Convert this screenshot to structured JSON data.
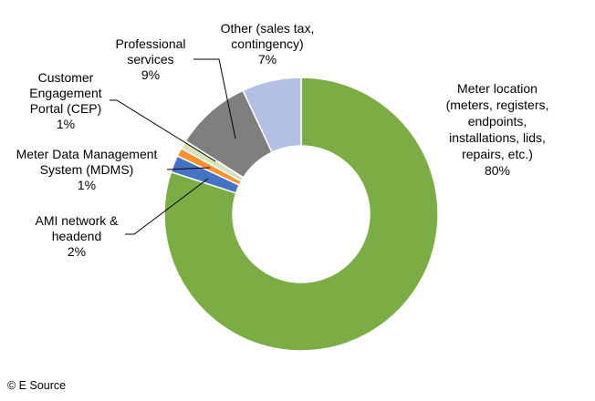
{
  "chart_data": {
    "type": "pie",
    "variant": "donut",
    "start": "top",
    "direction": "clockwise",
    "slices": [
      {
        "label": [
          "Meter location",
          "(meters, registers,",
          "endpoints,",
          "installations, lids,",
          "repairs, etc.)"
        ],
        "value": 80,
        "value_label": "80%",
        "color": "#7cac44"
      },
      {
        "label": [
          "AMI network &",
          "headend"
        ],
        "value": 2,
        "value_label": "2%",
        "color": "#4472c4"
      },
      {
        "label": [
          "Meter Data Management",
          "System (MDMS)"
        ],
        "value": 1,
        "value_label": "1%",
        "color": "#f7922d"
      },
      {
        "label": [
          "Customer",
          "Engagement",
          "Portal (CEP)"
        ],
        "value": 1,
        "value_label": "1%",
        "color": "#d6e3bd"
      },
      {
        "label": [
          "Professional",
          "services"
        ],
        "value": 9,
        "value_label": "9%",
        "color": "#7f7f7f"
      },
      {
        "label": [
          "Other (sales tax,",
          "contingency)"
        ],
        "value": 7,
        "value_label": "7%",
        "color": "#b4c0e3"
      }
    ],
    "legend": "none"
  },
  "credit": "© E Source"
}
